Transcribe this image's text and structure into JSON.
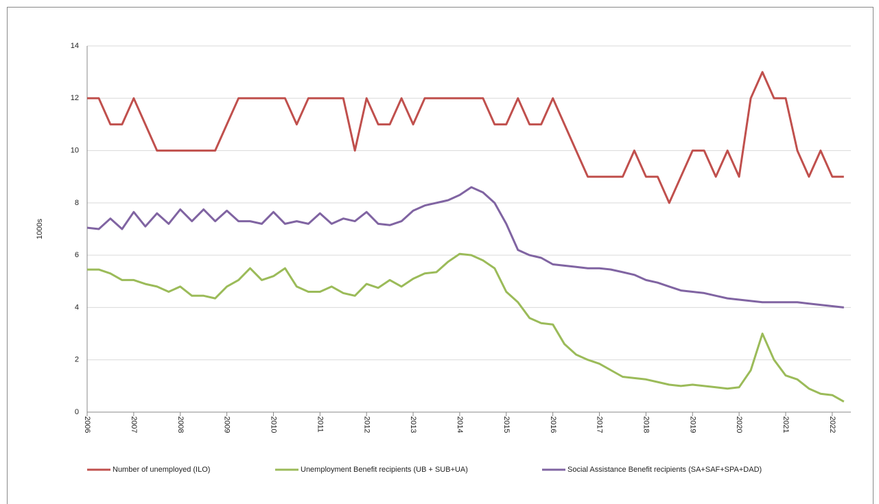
{
  "chart_data": {
    "type": "line",
    "y_label": "1000s",
    "legend": "bottom",
    "grid": true,
    "x": [
      2006,
      2006.25,
      2006.5,
      2006.75,
      2007,
      2007.25,
      2007.5,
      2007.75,
      2008,
      2008.25,
      2008.5,
      2008.75,
      2009,
      2009.25,
      2009.5,
      2009.75,
      2010,
      2010.25,
      2010.5,
      2010.75,
      2011,
      2011.25,
      2011.5,
      2011.75,
      2012,
      2012.25,
      2012.5,
      2012.75,
      2013,
      2013.25,
      2013.5,
      2013.75,
      2014,
      2014.25,
      2014.5,
      2014.75,
      2015,
      2015.25,
      2015.5,
      2015.75,
      2016,
      2016.25,
      2016.5,
      2016.75,
      2017,
      2017.25,
      2017.5,
      2017.75,
      2018,
      2018.25,
      2018.5,
      2018.75,
      2019,
      2019.25,
      2019.5,
      2019.75,
      2020,
      2020.25,
      2020.5,
      2020.75,
      2021,
      2021.25,
      2021.5,
      2021.75,
      2022,
      2022.25
    ],
    "xlim": [
      2006,
      2022.4
    ],
    "xticks": [
      2006,
      2007,
      2008,
      2009,
      2010,
      2011,
      2012,
      2013,
      2014,
      2015,
      2016,
      2017,
      2018,
      2019,
      2020,
      2021,
      2022
    ],
    "ylim": [
      0,
      14
    ],
    "yticks": [
      0,
      2,
      4,
      6,
      8,
      10,
      12,
      14
    ],
    "series": [
      {
        "name": "Number of unemployed (ILO)",
        "color": "#c0504d",
        "values": [
          12,
          12,
          11,
          11,
          12,
          11,
          10,
          10,
          10,
          10,
          10,
          10,
          11,
          12,
          12,
          12,
          12,
          12,
          11,
          12,
          12,
          12,
          12,
          10,
          12,
          11,
          11,
          12,
          11,
          12,
          12,
          12,
          12,
          12,
          12,
          11,
          11,
          12,
          11,
          11,
          12,
          11,
          10,
          9,
          9,
          9,
          9,
          10,
          9,
          9,
          8,
          9,
          10,
          10,
          9,
          10,
          9,
          12,
          13,
          12,
          12,
          10,
          9,
          10,
          9,
          9
        ]
      },
      {
        "name": "Unemployment Benefit recipients (UB + SUB+UA)",
        "color": "#9bbb59",
        "values": [
          5.45,
          5.45,
          5.3,
          5.05,
          5.05,
          4.9,
          4.8,
          4.6,
          4.8,
          4.45,
          4.45,
          4.35,
          4.8,
          5.05,
          5.5,
          5.05,
          5.2,
          5.5,
          4.8,
          4.6,
          4.6,
          4.8,
          4.55,
          4.45,
          4.9,
          4.75,
          5.05,
          4.8,
          5.1,
          5.3,
          5.35,
          5.75,
          6.05,
          6.0,
          5.8,
          5.5,
          4.6,
          4.2,
          3.6,
          3.4,
          3.35,
          2.6,
          2.2,
          2.0,
          1.85,
          1.6,
          1.35,
          1.3,
          1.25,
          1.15,
          1.05,
          1.0,
          1.05,
          1.0,
          0.95,
          0.9,
          0.95,
          1.6,
          3.0,
          2.0,
          1.4,
          1.25,
          0.9,
          0.7,
          0.65,
          0.4
        ]
      },
      {
        "name": "Social Assistance Benefit recipients (SA+SAF+SPA+DAD)",
        "color": "#8064a2",
        "values": [
          7.05,
          7.0,
          7.4,
          7.0,
          7.65,
          7.1,
          7.6,
          7.2,
          7.75,
          7.3,
          7.75,
          7.3,
          7.7,
          7.3,
          7.3,
          7.2,
          7.65,
          7.2,
          7.3,
          7.2,
          7.6,
          7.2,
          7.4,
          7.3,
          7.65,
          7.2,
          7.15,
          7.3,
          7.7,
          7.9,
          8.0,
          8.1,
          8.3,
          8.6,
          8.4,
          8.0,
          7.2,
          6.2,
          6.0,
          5.9,
          5.65,
          5.6,
          5.55,
          5.5,
          5.5,
          5.45,
          5.35,
          5.25,
          5.05,
          4.95,
          4.8,
          4.65,
          4.6,
          4.55,
          4.45,
          4.35,
          4.3,
          4.25,
          4.2,
          4.2,
          4.2,
          4.2,
          4.15,
          4.1,
          4.05,
          4.0
        ]
      }
    ]
  }
}
